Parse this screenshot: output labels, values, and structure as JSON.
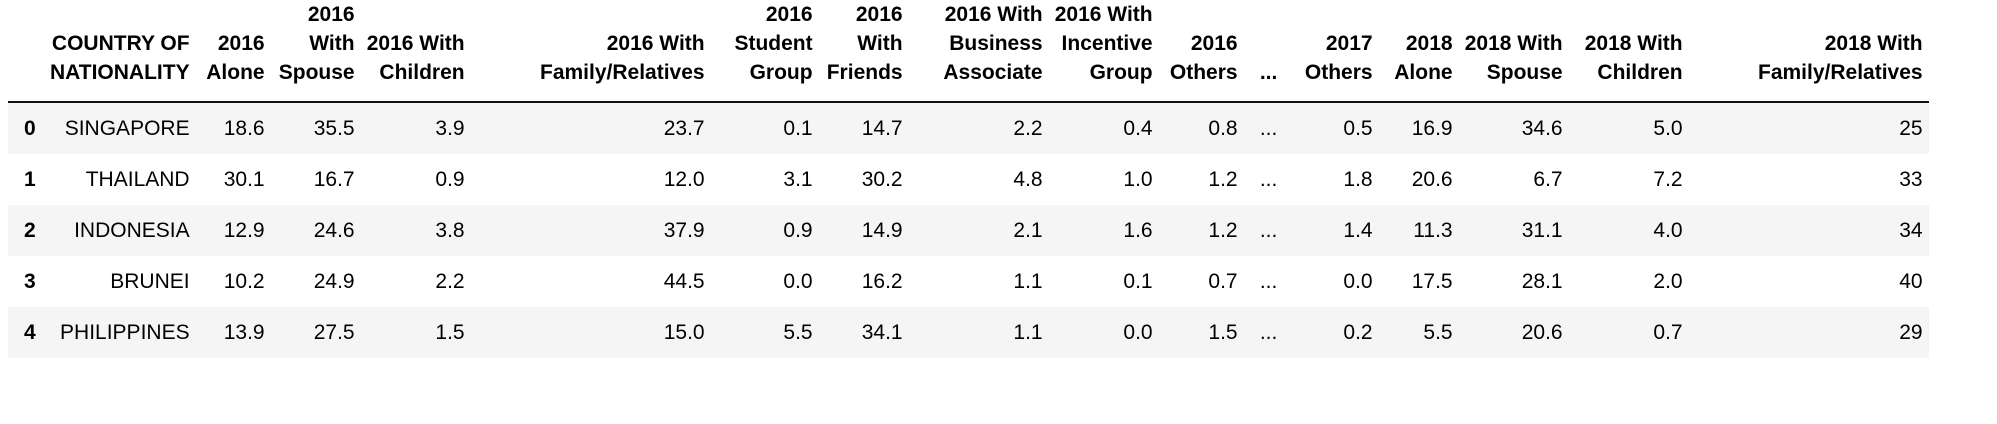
{
  "table": {
    "headers": [
      "",
      "COUNTRY OF NATIONALITY",
      "2016 Alone",
      "2016 With Spouse",
      "2016 With Children",
      "2016 With Family/Relatives",
      "2016 Student Group",
      "2016 With Friends",
      "2016 With Business Associate",
      "2016 With Incentive Group",
      "2016 Others",
      "...",
      "2017 Others",
      "2018 Alone",
      "2018 With Spouse",
      "2018 With Children",
      "2018 With Family/Relatives"
    ],
    "rows": [
      [
        "0",
        "SINGAPORE",
        "18.6",
        "35.5",
        "3.9",
        "23.7",
        "0.1",
        "14.7",
        "2.2",
        "0.4",
        "0.8",
        "...",
        "0.5",
        "16.9",
        "34.6",
        "5.0",
        "25"
      ],
      [
        "1",
        "THAILAND",
        "30.1",
        "16.7",
        "0.9",
        "12.0",
        "3.1",
        "30.2",
        "4.8",
        "1.0",
        "1.2",
        "...",
        "1.8",
        "20.6",
        "6.7",
        "7.2",
        "33"
      ],
      [
        "2",
        "INDONESIA",
        "12.9",
        "24.6",
        "3.8",
        "37.9",
        "0.9",
        "14.9",
        "2.1",
        "1.6",
        "1.2",
        "...",
        "1.4",
        "11.3",
        "31.1",
        "4.0",
        "34"
      ],
      [
        "3",
        "BRUNEI",
        "10.2",
        "24.9",
        "2.2",
        "44.5",
        "0.0",
        "16.2",
        "1.1",
        "0.1",
        "0.7",
        "...",
        "0.0",
        "17.5",
        "28.1",
        "2.0",
        "40"
      ],
      [
        "4",
        "PHILIPPINES",
        "13.9",
        "27.5",
        "1.5",
        "15.0",
        "5.5",
        "34.1",
        "1.1",
        "0.0",
        "1.5",
        "...",
        "0.2",
        "5.5",
        "20.6",
        "0.7",
        "29"
      ]
    ]
  }
}
